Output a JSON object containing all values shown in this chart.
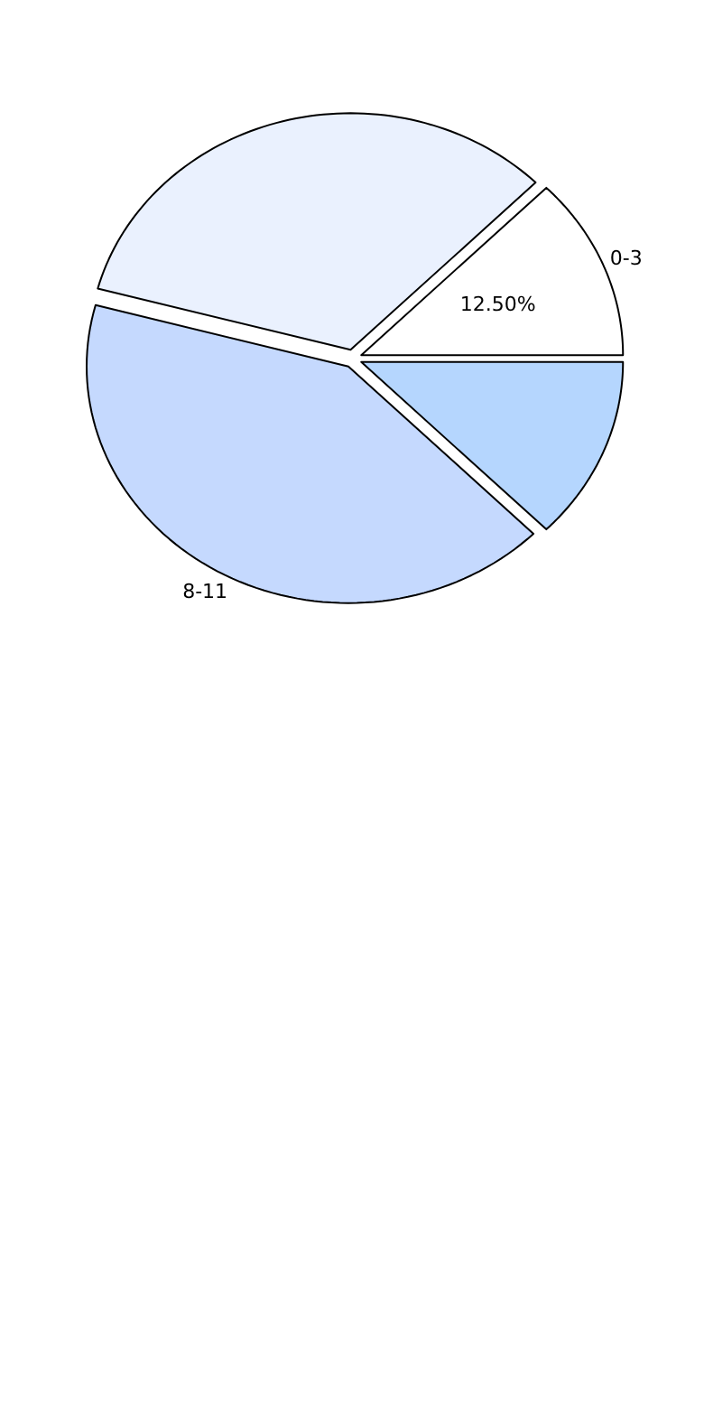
{
  "chart_data": {
    "type": "pie",
    "categories": [
      "0-3",
      null,
      "8-11",
      null
    ],
    "values": [
      12.5,
      33.33,
      41.67,
      12.5
    ],
    "colors": [
      "#ffffff",
      "#eaf1fe",
      "#c5d9fe",
      "#b5d6fe"
    ],
    "value_labels": [
      "12.50%",
      null,
      null,
      null
    ]
  }
}
